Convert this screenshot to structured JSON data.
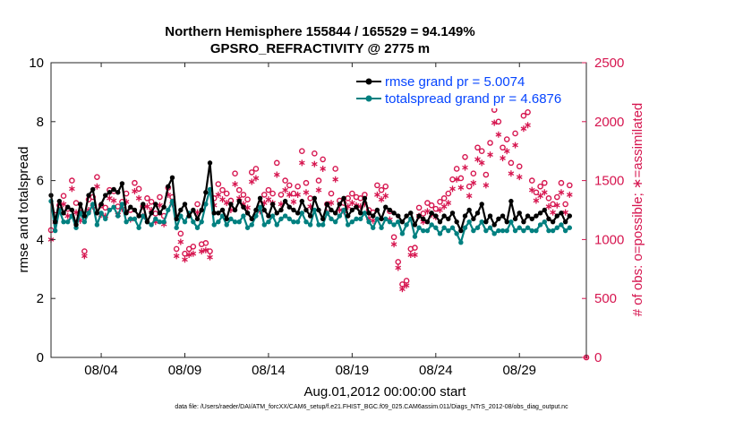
{
  "chart_data": {
    "type": "line",
    "title": "Northern Hemisphere 155844 / 165529 = 94.149%",
    "subtitle": "GPSRO_REFRACTIVITY @ 2775 m",
    "xlabel": "Aug.01,2012 00:00:00 start",
    "ylabel": "rmse and totalspread",
    "y2label": "# of obs: o=possible; ∗=assimilated",
    "xlim": [
      1,
      33
    ],
    "ylim": [
      0,
      10
    ],
    "y2lim": [
      0,
      2500
    ],
    "xticks": [
      {
        "x": 4,
        "label": "08/04"
      },
      {
        "x": 9,
        "label": "08/09"
      },
      {
        "x": 14,
        "label": "08/14"
      },
      {
        "x": 19,
        "label": "08/19"
      },
      {
        "x": 24,
        "label": "08/24"
      },
      {
        "x": 29,
        "label": "08/29"
      }
    ],
    "yticks": [
      "0",
      "2",
      "4",
      "6",
      "8",
      "10"
    ],
    "y2ticks": [
      "0",
      "500",
      "1000",
      "1500",
      "2000",
      "2500"
    ],
    "legend": [
      {
        "label": "rmse grand pr = 5.0074",
        "color": "#000000"
      },
      {
        "label": "totalspread grand pr = 4.6876",
        "color": "#008080"
      }
    ],
    "colors": {
      "rmse": "#000000",
      "spread": "#008080",
      "obs": "#d6154f",
      "legend_text": "#0645ff"
    },
    "x": [
      1.0,
      1.25,
      1.5,
      1.75,
      2.0,
      2.25,
      2.5,
      2.75,
      3.0,
      3.25,
      3.5,
      3.75,
      4.0,
      4.25,
      4.5,
      4.75,
      5.0,
      5.25,
      5.5,
      5.75,
      6.0,
      6.25,
      6.5,
      6.75,
      7.0,
      7.25,
      7.5,
      7.75,
      8.0,
      8.25,
      8.5,
      8.75,
      9.0,
      9.25,
      9.5,
      9.75,
      10.0,
      10.25,
      10.5,
      10.75,
      11.0,
      11.25,
      11.5,
      11.75,
      12.0,
      12.25,
      12.5,
      12.75,
      13.0,
      13.25,
      13.5,
      13.75,
      14.0,
      14.25,
      14.5,
      14.75,
      15.0,
      15.25,
      15.5,
      15.75,
      16.0,
      16.25,
      16.5,
      16.75,
      17.0,
      17.25,
      17.5,
      17.75,
      18.0,
      18.25,
      18.5,
      18.75,
      19.0,
      19.25,
      19.5,
      19.75,
      20.0,
      20.25,
      20.5,
      20.75,
      21.0,
      21.25,
      21.5,
      21.75,
      22.0,
      22.25,
      22.5,
      22.75,
      23.0,
      23.25,
      23.5,
      23.75,
      24.0,
      24.25,
      24.5,
      24.75,
      25.0,
      25.25,
      25.5,
      25.75,
      26.0,
      26.25,
      26.5,
      26.75,
      27.0,
      27.25,
      27.5,
      27.75,
      28.0,
      28.25,
      28.5,
      28.75,
      29.0,
      29.25,
      29.5,
      29.75,
      30.0,
      30.25,
      30.5,
      30.75,
      31.0,
      31.25,
      31.5,
      31.75,
      32.0
    ],
    "series": [
      {
        "name": "rmse",
        "values": [
          5.5,
          4.6,
          5.3,
          4.9,
          5.1,
          5.0,
          4.5,
          5.2,
          4.8,
          5.5,
          5.7,
          4.9,
          5.2,
          5.5,
          5.6,
          5.7,
          5.6,
          5.9,
          4.9,
          5.1,
          5.0,
          4.8,
          5.2,
          4.6,
          4.9,
          5.2,
          4.9,
          5.1,
          5.8,
          6.1,
          4.7,
          5.0,
          5.2,
          4.8,
          5.0,
          4.7,
          5.0,
          5.6,
          6.6,
          4.9,
          4.9,
          5.0,
          4.7,
          5.2,
          5.0,
          5.3,
          5.1,
          4.9,
          4.7,
          5.0,
          5.4,
          5.0,
          4.8,
          5.2,
          4.9,
          5.0,
          5.3,
          5.1,
          5.0,
          4.9,
          5.3,
          5.0,
          4.8,
          5.4,
          5.0,
          4.7,
          5.2,
          5.0,
          4.9,
          5.2,
          5.4,
          4.8,
          5.0,
          5.1,
          4.9,
          5.4,
          4.9,
          4.8,
          5.0,
          4.7,
          5.1,
          5.0,
          4.9,
          4.8,
          4.6,
          4.8,
          4.9,
          4.5,
          4.8,
          4.7,
          4.6,
          4.9,
          4.8,
          4.6,
          4.8,
          4.7,
          4.9,
          4.6,
          4.3,
          4.8,
          5.0,
          4.7,
          4.9,
          5.2,
          4.6,
          4.8,
          4.5,
          4.7,
          4.8,
          4.6,
          5.3,
          4.7,
          4.9,
          4.6,
          4.8,
          4.7,
          4.8,
          4.9,
          5.0,
          4.7,
          4.6,
          4.8,
          4.9,
          4.6,
          4.8
        ]
      },
      {
        "name": "totalspread",
        "values": [
          5.3,
          4.3,
          5.0,
          4.6,
          4.6,
          4.8,
          4.4,
          4.9,
          4.6,
          4.9,
          5.2,
          4.5,
          4.9,
          4.7,
          5.0,
          5.1,
          4.8,
          5.2,
          4.6,
          4.7,
          4.7,
          4.4,
          4.8,
          4.6,
          4.5,
          4.7,
          4.6,
          4.6,
          5.0,
          5.3,
          4.4,
          4.8,
          4.6,
          4.9,
          4.6,
          4.4,
          4.6,
          5.2,
          5.7,
          4.5,
          4.6,
          4.8,
          4.5,
          4.7,
          4.6,
          4.6,
          4.8,
          4.4,
          4.5,
          4.8,
          5.1,
          4.5,
          4.6,
          4.8,
          4.5,
          4.7,
          4.8,
          4.7,
          4.6,
          4.6,
          4.9,
          4.6,
          4.5,
          5.0,
          4.5,
          4.5,
          4.9,
          4.7,
          4.6,
          4.8,
          5.0,
          4.5,
          4.6,
          4.7,
          4.7,
          4.9,
          4.6,
          4.4,
          4.7,
          4.4,
          4.7,
          4.6,
          4.5,
          4.6,
          4.2,
          4.5,
          4.7,
          4.1,
          4.4,
          4.3,
          4.3,
          4.5,
          4.4,
          4.2,
          4.4,
          4.3,
          4.4,
          4.2,
          3.9,
          4.4,
          4.6,
          4.3,
          4.4,
          4.6,
          4.3,
          4.4,
          4.2,
          4.3,
          4.3,
          4.3,
          4.6,
          4.3,
          4.4,
          4.3,
          4.4,
          4.3,
          4.3,
          4.5,
          4.6,
          4.3,
          4.3,
          4.4,
          4.5,
          4.3,
          4.4
        ]
      },
      {
        "name": "obs_possible",
        "values": [
          1080,
          1210,
          1290,
          1370,
          1260,
          1500,
          1310,
          1230,
          900,
          1340,
          1360,
          1530,
          1290,
          1270,
          1420,
          1410,
          1280,
          1320,
          1390,
          1250,
          1480,
          1430,
          1280,
          1350,
          1320,
          1220,
          1360,
          1200,
          1440,
          1360,
          920,
          1050,
          880,
          920,
          940,
          1300,
          960,
          970,
          900,
          1350,
          1470,
          1420,
          1390,
          1330,
          1560,
          1420,
          1380,
          1340,
          1570,
          1600,
          1300,
          1380,
          1420,
          1390,
          1650,
          1380,
          1500,
          1460,
          1390,
          1450,
          1750,
          1480,
          1350,
          1730,
          1500,
          1680,
          1300,
          1390,
          1600,
          1330,
          1310,
          1350,
          1390,
          1360,
          1350,
          1380,
          1250,
          1230,
          1460,
          1420,
          1450,
          1240,
          1020,
          810,
          620,
          650,
          920,
          930,
          1270,
          1220,
          1310,
          1290,
          1260,
          1320,
          1350,
          1390,
          1510,
          1600,
          1520,
          1700,
          1450,
          1560,
          1780,
          1750,
          1550,
          1820,
          2100,
          2000,
          1780,
          1850,
          1650,
          1900,
          1620,
          2050,
          2080,
          1500,
          1400,
          1450,
          1480,
          1350,
          1300,
          1360,
          1480,
          1300,
          1460
        ]
      },
      {
        "name": "obs_assimilated",
        "values": [
          1000,
          1150,
          1240,
          1300,
          1200,
          1430,
          1230,
          1160,
          860,
          1250,
          1280,
          1450,
          1210,
          1200,
          1350,
          1330,
          1210,
          1260,
          1320,
          1170,
          1410,
          1350,
          1200,
          1280,
          1250,
          1150,
          1290,
          1130,
          1380,
          1300,
          860,
          980,
          830,
          870,
          880,
          1230,
          900,
          910,
          850,
          1290,
          1380,
          1340,
          1310,
          1250,
          1470,
          1350,
          1300,
          1270,
          1490,
          1520,
          1240,
          1310,
          1340,
          1310,
          1550,
          1300,
          1420,
          1380,
          1320,
          1380,
          1650,
          1400,
          1280,
          1640,
          1420,
          1600,
          1230,
          1310,
          1510,
          1250,
          1240,
          1280,
          1310,
          1290,
          1280,
          1300,
          1180,
          1160,
          1380,
          1340,
          1370,
          1170,
          960,
          760,
          580,
          610,
          870,
          870,
          1200,
          1150,
          1240,
          1210,
          1190,
          1250,
          1280,
          1310,
          1430,
          1510,
          1440,
          1610,
          1370,
          1480,
          1680,
          1650,
          1460,
          1720,
          1990,
          1890,
          1690,
          1750,
          1560,
          1800,
          1530,
          1940,
          1970,
          1420,
          1330,
          1370,
          1400,
          1280,
          1230,
          1290,
          1400,
          1230,
          1380
        ]
      }
    ]
  },
  "footer": "data file: /Users/raeder/DAI/ATM_forcXX/CAM6_setup/f.e21.FHIST_BGC.f09_025.CAM6assim.011/Diags_NTrS_2012-08/obs_diag_output.nc"
}
